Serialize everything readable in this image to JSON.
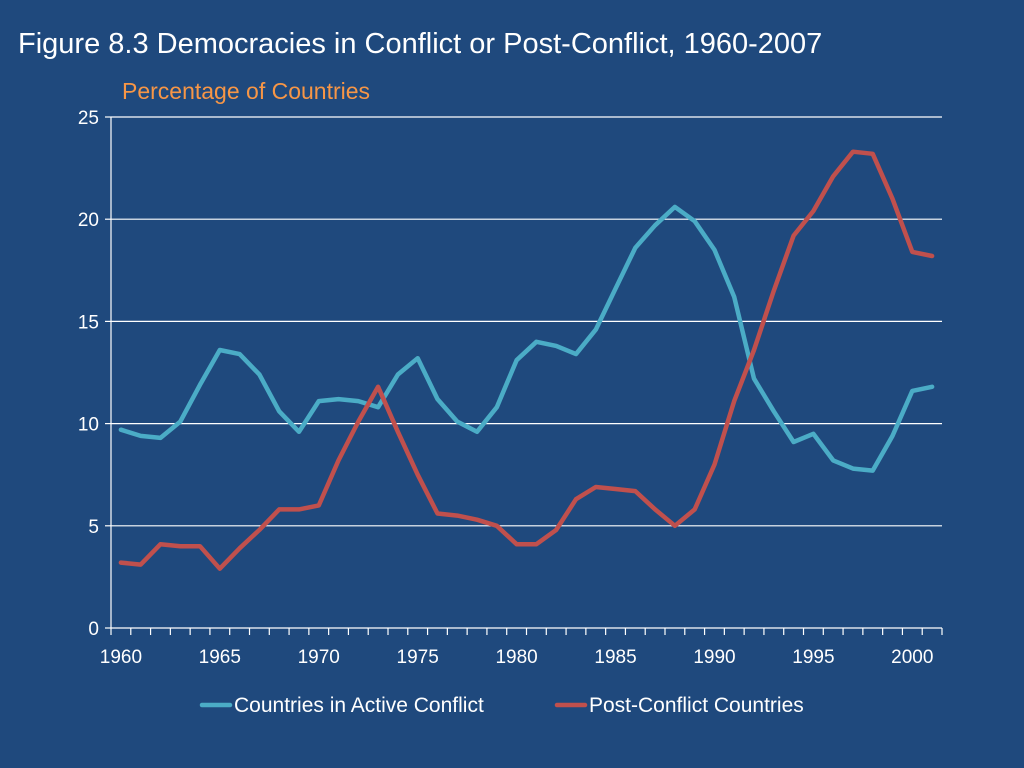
{
  "slide": {
    "title": "Figure 8.3 Democracies in Conflict or Post-Conflict, 1960-2007"
  },
  "chart_data": {
    "type": "line",
    "title": "Figure 8.3 Democracies in Conflict or Post-Conflict, 1960-2007",
    "ylabel": "Percentage of Countries",
    "ylabel_color": "#f79646",
    "xlabel": "",
    "ylim": [
      0,
      25
    ],
    "y_ticks": [
      0,
      5,
      10,
      15,
      20,
      25
    ],
    "x_ticks": [
      1960,
      1965,
      1970,
      1975,
      1980,
      1985,
      1990,
      1995,
      2000
    ],
    "grid": "horizontal",
    "legend_position": "bottom",
    "x": [
      1960,
      1961,
      1962,
      1963,
      1964,
      1965,
      1966,
      1967,
      1968,
      1969,
      1970,
      1971,
      1972,
      1973,
      1974,
      1975,
      1976,
      1977,
      1978,
      1979,
      1980,
      1981,
      1982,
      1983,
      1984,
      1985,
      1986,
      1987,
      1988,
      1989,
      1990,
      1991,
      1992,
      1993,
      1994,
      1995,
      1996,
      1997,
      1998,
      1999,
      2000,
      2001
    ],
    "series": [
      {
        "name": "Countries in Active Conflict",
        "color": "#4bacc6",
        "values": [
          9.7,
          9.4,
          9.3,
          10.1,
          11.9,
          13.6,
          13.4,
          12.4,
          10.6,
          9.6,
          11.1,
          11.2,
          11.1,
          10.8,
          12.4,
          13.2,
          11.2,
          10.1,
          9.6,
          10.8,
          13.1,
          14.0,
          13.8,
          13.4,
          14.6,
          16.6,
          18.6,
          19.7,
          20.6,
          19.9,
          18.5,
          16.2,
          12.2,
          10.6,
          9.1,
          9.5,
          8.2,
          7.8,
          7.7,
          9.4,
          11.6,
          11.8
        ]
      },
      {
        "name": "Post-Conflict Countries",
        "color": "#c0504d",
        "values": [
          3.2,
          3.1,
          4.1,
          4.0,
          4.0,
          2.9,
          3.9,
          4.8,
          5.8,
          5.8,
          6.0,
          8.2,
          10.1,
          11.8,
          9.6,
          7.5,
          5.6,
          5.5,
          5.3,
          5.0,
          4.1,
          4.1,
          4.8,
          6.3,
          6.9,
          6.8,
          6.7,
          5.8,
          5.0,
          5.8,
          8.0,
          11.1,
          13.6,
          16.5,
          19.2,
          20.4,
          22.1,
          23.3,
          23.2,
          21.0,
          18.4,
          18.2
        ]
      }
    ]
  }
}
